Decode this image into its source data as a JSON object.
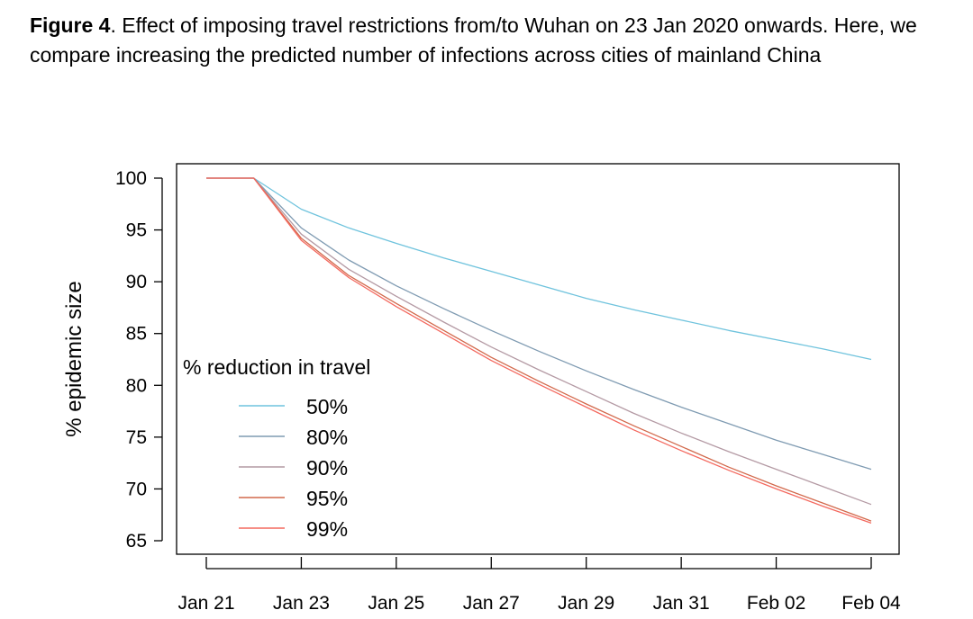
{
  "caption": {
    "label": "Figure 4",
    "text": ". Effect of imposing travel restrictions from/to Wuhan on 23 Jan 2020 onwards. Here, we compare increasing the predicted number of infections across cities of mainland China"
  },
  "chart_data": {
    "type": "line",
    "title": "",
    "xlabel": "",
    "ylabel": "% epidemic size",
    "ylim": [
      64.3,
      101.3
    ],
    "xlim": [
      0,
      14
    ],
    "x": [
      0,
      1,
      2,
      3,
      4,
      5,
      6,
      7,
      8,
      9,
      10,
      11,
      12,
      13,
      14
    ],
    "x_ticks": [
      {
        "x": 0,
        "label": "Jan 21"
      },
      {
        "x": 2,
        "label": "Jan 23"
      },
      {
        "x": 4,
        "label": "Jan 25"
      },
      {
        "x": 6,
        "label": "Jan 27"
      },
      {
        "x": 8,
        "label": "Jan 29"
      },
      {
        "x": 10,
        "label": "Jan 31"
      },
      {
        "x": 12,
        "label": "Feb 02"
      },
      {
        "x": 14,
        "label": "Feb 04"
      }
    ],
    "y_ticks": [
      65,
      70,
      75,
      80,
      85,
      90,
      95,
      100
    ],
    "legend": {
      "title": "% reduction in travel",
      "position": "left-center"
    },
    "series": [
      {
        "name": "50%",
        "color": "#6fc3dd",
        "values": [
          100,
          100,
          97.0,
          95.2,
          93.7,
          92.3,
          91.0,
          89.7,
          88.4,
          87.3,
          86.3,
          85.3,
          84.4,
          83.5,
          82.5
        ]
      },
      {
        "name": "80%",
        "color": "#7f9bb2",
        "values": [
          100,
          100,
          95.2,
          92.1,
          89.6,
          87.4,
          85.3,
          83.3,
          81.4,
          79.6,
          77.9,
          76.3,
          74.7,
          73.3,
          71.9
        ]
      },
      {
        "name": "90%",
        "color": "#b49aa4",
        "values": [
          100,
          100,
          94.6,
          91.2,
          88.6,
          86.1,
          83.7,
          81.5,
          79.4,
          77.3,
          75.4,
          73.6,
          71.9,
          70.2,
          68.5
        ]
      },
      {
        "name": "95%",
        "color": "#d2694c",
        "values": [
          100,
          100,
          94.2,
          90.6,
          87.9,
          85.3,
          82.7,
          80.4,
          78.2,
          76.1,
          74.1,
          72.1,
          70.3,
          68.6,
          66.9
        ]
      },
      {
        "name": "99%",
        "color": "#f4695f",
        "values": [
          100,
          100,
          94.0,
          90.4,
          87.6,
          85.0,
          82.4,
          80.1,
          77.9,
          75.7,
          73.7,
          71.8,
          70.0,
          68.3,
          66.7
        ]
      }
    ]
  }
}
